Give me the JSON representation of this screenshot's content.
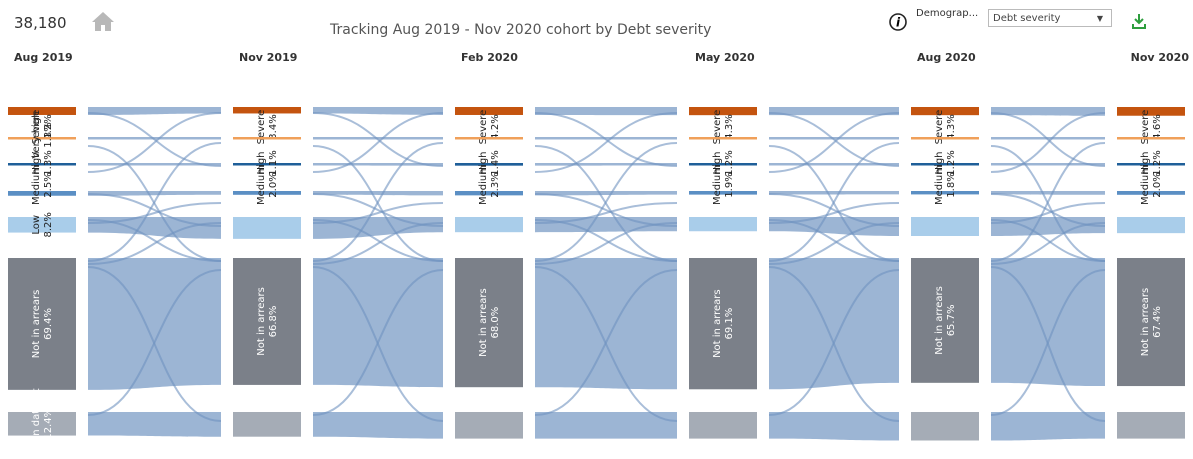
{
  "header": {
    "count": "38,180",
    "filter_label": "Demograp...",
    "filter_value": "Debt severity"
  },
  "chart_data": {
    "type": "sankey",
    "title": "Tracking Aug 2019 - Nov 2020 cohort by Debt severity",
    "categories": [
      "Severe",
      "Very high",
      "High",
      "Medium",
      "Low",
      "Not in arrears",
      "Not in dataset"
    ],
    "colors": [
      "#c4540f",
      "#f0a05a",
      "#1f5f99",
      "#5b8fc4",
      "#a9cdea",
      "#7b8089",
      "#a5acb6"
    ],
    "columns": [
      {
        "date": "Aug 2019",
        "values": [
          4.2,
          1.3,
          1.3,
          2.5,
          8.2,
          69.4,
          12.4
        ],
        "value_labels": [
          "4.2%",
          "1.3%",
          "1.3%",
          "2.5%",
          "8.2%",
          "69.4%",
          "12.4%"
        ]
      },
      {
        "date": "Nov 2019",
        "values": [
          3.4,
          0.8,
          1.1,
          2.0,
          11.5,
          66.8,
          13
        ],
        "value_labels": [
          "3.4%",
          null,
          "1.1%",
          "2.0%",
          null,
          "66.8%",
          null
        ]
      },
      {
        "date": "Feb 2020",
        "values": [
          4.2,
          0.8,
          1.4,
          2.3,
          8,
          68.0,
          14
        ],
        "value_labels": [
          "4.2%",
          null,
          "1.4%",
          "2.3%",
          null,
          "68.0%",
          null
        ]
      },
      {
        "date": "May 2020",
        "values": [
          4.3,
          0.8,
          1.2,
          1.9,
          7.5,
          69.1,
          14
        ],
        "value_labels": [
          "4.3%",
          null,
          "1.2%",
          "1.9%",
          null,
          "69.1%",
          null
        ]
      },
      {
        "date": "Aug 2020",
        "values": [
          4.3,
          0.8,
          1.2,
          1.8,
          10,
          65.7,
          15
        ],
        "value_labels": [
          "4.3%",
          null,
          "1.2%",
          "1.8%",
          null,
          "65.7%",
          null
        ]
      },
      {
        "date": "Nov 2020",
        "values": [
          4.6,
          0.8,
          1.2,
          2.0,
          8.5,
          67.4,
          14
        ],
        "value_labels": [
          "4.6%",
          null,
          "1.2%",
          "2.0%",
          null,
          "67.4%",
          null
        ]
      }
    ]
  }
}
